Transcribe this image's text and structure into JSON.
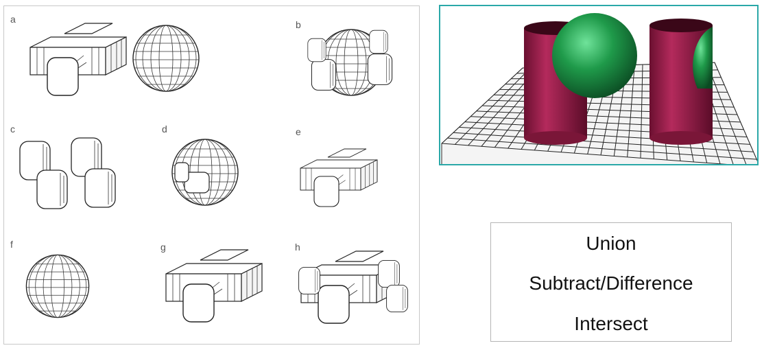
{
  "figure_letters": [
    "a",
    "b",
    "c",
    "d",
    "e",
    "f",
    "g",
    "h"
  ],
  "operations": [
    "Union",
    "Subtract/Difference",
    "Intersect"
  ],
  "colors": {
    "cylinder": "#a01e4e",
    "sphere": "#1f9a4a",
    "frame_accent": "#2aa8a8",
    "grid_line": "#222222"
  }
}
